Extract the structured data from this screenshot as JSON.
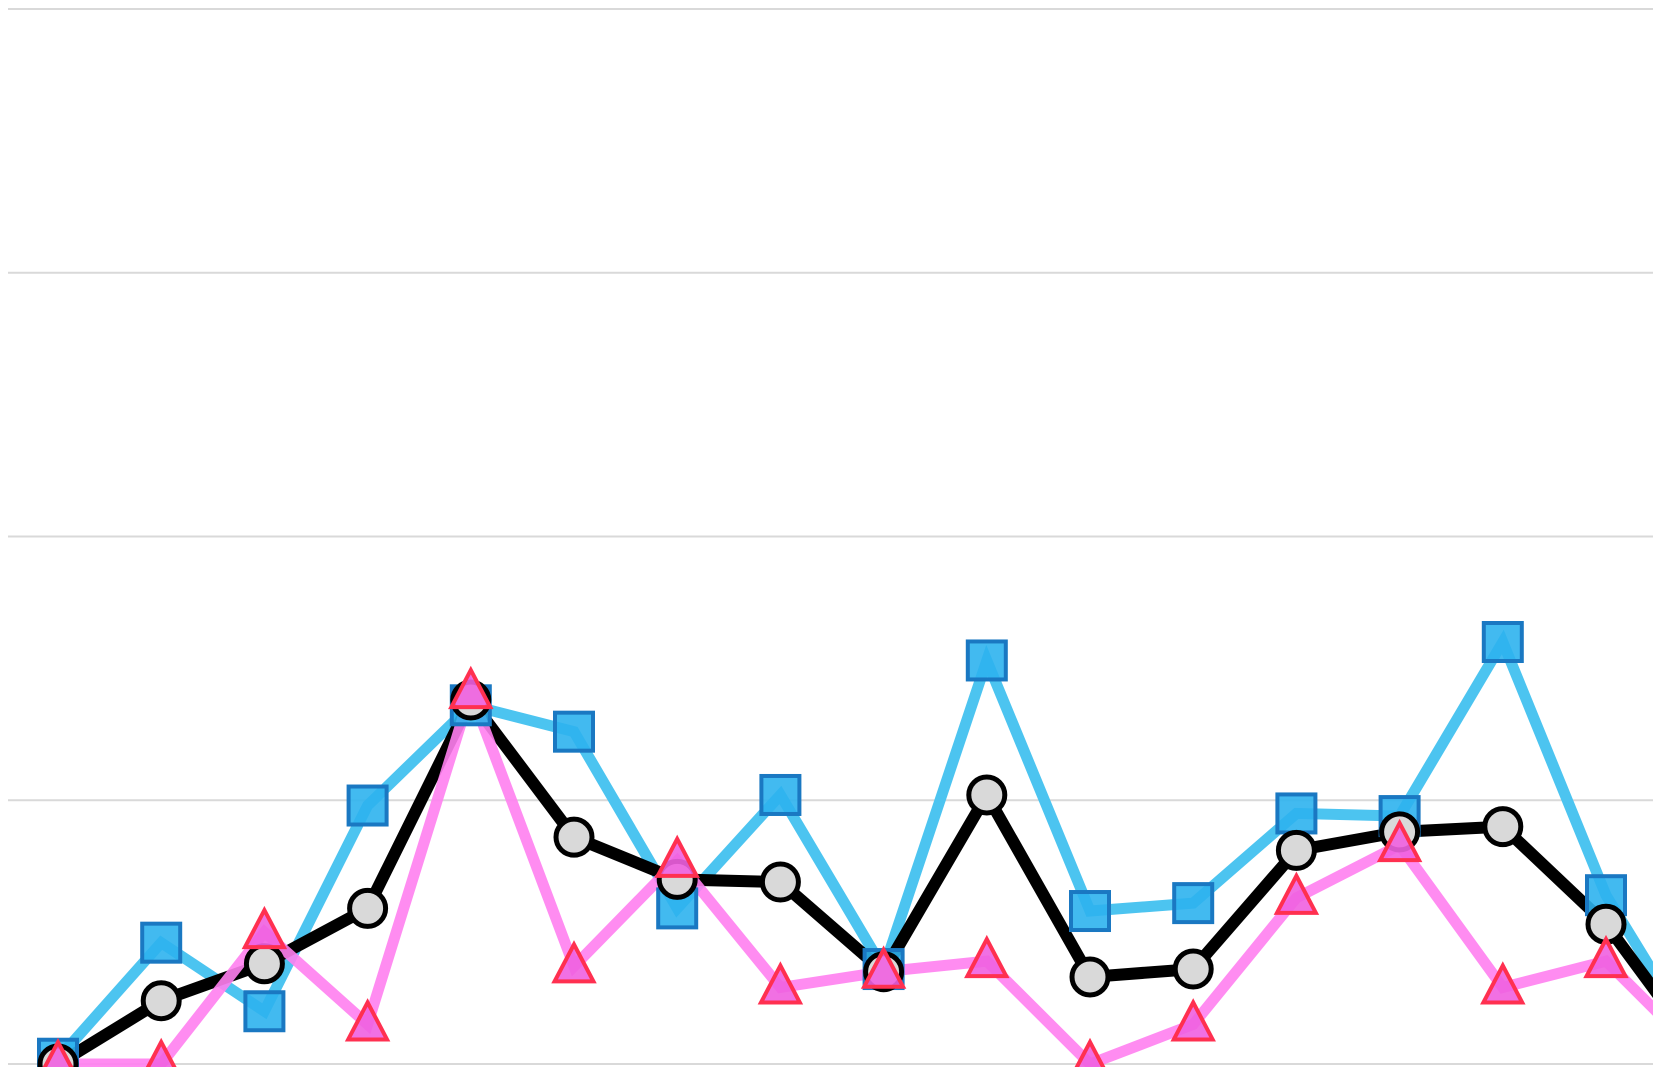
{
  "chart_data": {
    "type": "line",
    "title": "",
    "xlabel": "",
    "ylabel": "",
    "x": [
      1,
      2,
      3,
      4,
      5,
      6,
      7,
      8,
      9,
      10,
      11,
      12,
      13,
      14,
      15,
      16,
      17
    ],
    "ylim": [
      0,
      4
    ],
    "yticks": [
      0,
      1,
      2,
      3,
      4
    ],
    "grid": true,
    "legend": "none",
    "series": [
      {
        "style": "black-line-grey-circle",
        "line_color": "#000000",
        "marker_fill": "#d9d9d9",
        "marker": "circle",
        "values": [
          0.0,
          0.24,
          0.38,
          0.59,
          1.38,
          0.86,
          0.7,
          0.69,
          0.35,
          1.02,
          0.33,
          0.36,
          0.81,
          0.88,
          0.9,
          0.53,
          0.0
        ]
      },
      {
        "style": "cyan-line-blue-square",
        "line_color": "#4cc4f0",
        "marker_fill": "#2eb2ee",
        "marker_stroke": "#1a78c2",
        "marker": "square",
        "values": [
          0.02,
          0.46,
          0.2,
          0.98,
          1.36,
          1.26,
          0.59,
          1.02,
          0.36,
          1.53,
          0.58,
          0.61,
          0.95,
          0.94,
          1.6,
          0.64,
          0.0
        ]
      },
      {
        "style": "magenta-line-red-triangle",
        "line_color": "#ff80f0",
        "marker_fill": "#f060e0",
        "marker_stroke": "#ff3050",
        "marker": "triangle",
        "values": [
          0.0,
          0.0,
          0.5,
          0.15,
          1.41,
          0.37,
          0.77,
          0.29,
          0.35,
          0.39,
          0.0,
          0.15,
          0.63,
          0.83,
          0.29,
          0.39,
          0.0
        ]
      }
    ]
  }
}
